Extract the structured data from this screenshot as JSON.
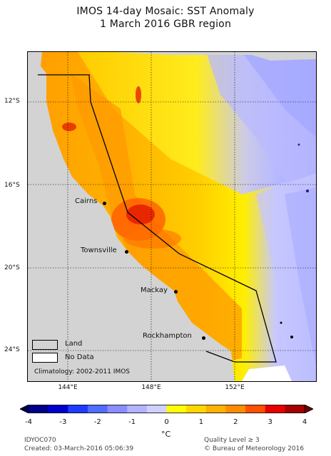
{
  "title": {
    "line1": "IMOS 14-day Mosaic: SST Anomaly",
    "line2": "1 March 2016   GBR region"
  },
  "map": {
    "latitude_labels": [
      "12°S",
      "16°S",
      "20°S",
      "24°S"
    ],
    "longitude_labels": [
      "144°E",
      "148°E",
      "152°E"
    ],
    "cities": [
      {
        "name": "Cairns"
      },
      {
        "name": "Townsville"
      },
      {
        "name": "Mackay"
      },
      {
        "name": "Rockhampton"
      }
    ],
    "legend": {
      "land_label": "Land",
      "no_data_label": "No Data",
      "climatology": "Climatology: 2002-2011 IMOS"
    },
    "colors": {
      "land": "#d3d3d3",
      "no_data": "#ffffff"
    }
  },
  "colorbar": {
    "ticks": [
      "-4",
      "-3",
      "-2",
      "-1",
      "0",
      "1",
      "2",
      "3",
      "4"
    ],
    "unit": "°C",
    "min": -4,
    "max": 4,
    "colors": [
      "#00008b",
      "#0000cd",
      "#1e3cff",
      "#4f6dff",
      "#8a8dff",
      "#b3b3ff",
      "#d0d0ff",
      "#ffff00",
      "#ffd700",
      "#ffb000",
      "#ff8c00",
      "#ff5000",
      "#e60000",
      "#a50000"
    ]
  },
  "footer": {
    "product_id": "IDYOC070",
    "created": "Created: 03-March-2016  05:06:39",
    "quality": "Quality Level ≥ 3",
    "copyright": "©  Bureau of Meteorology 2016"
  }
}
